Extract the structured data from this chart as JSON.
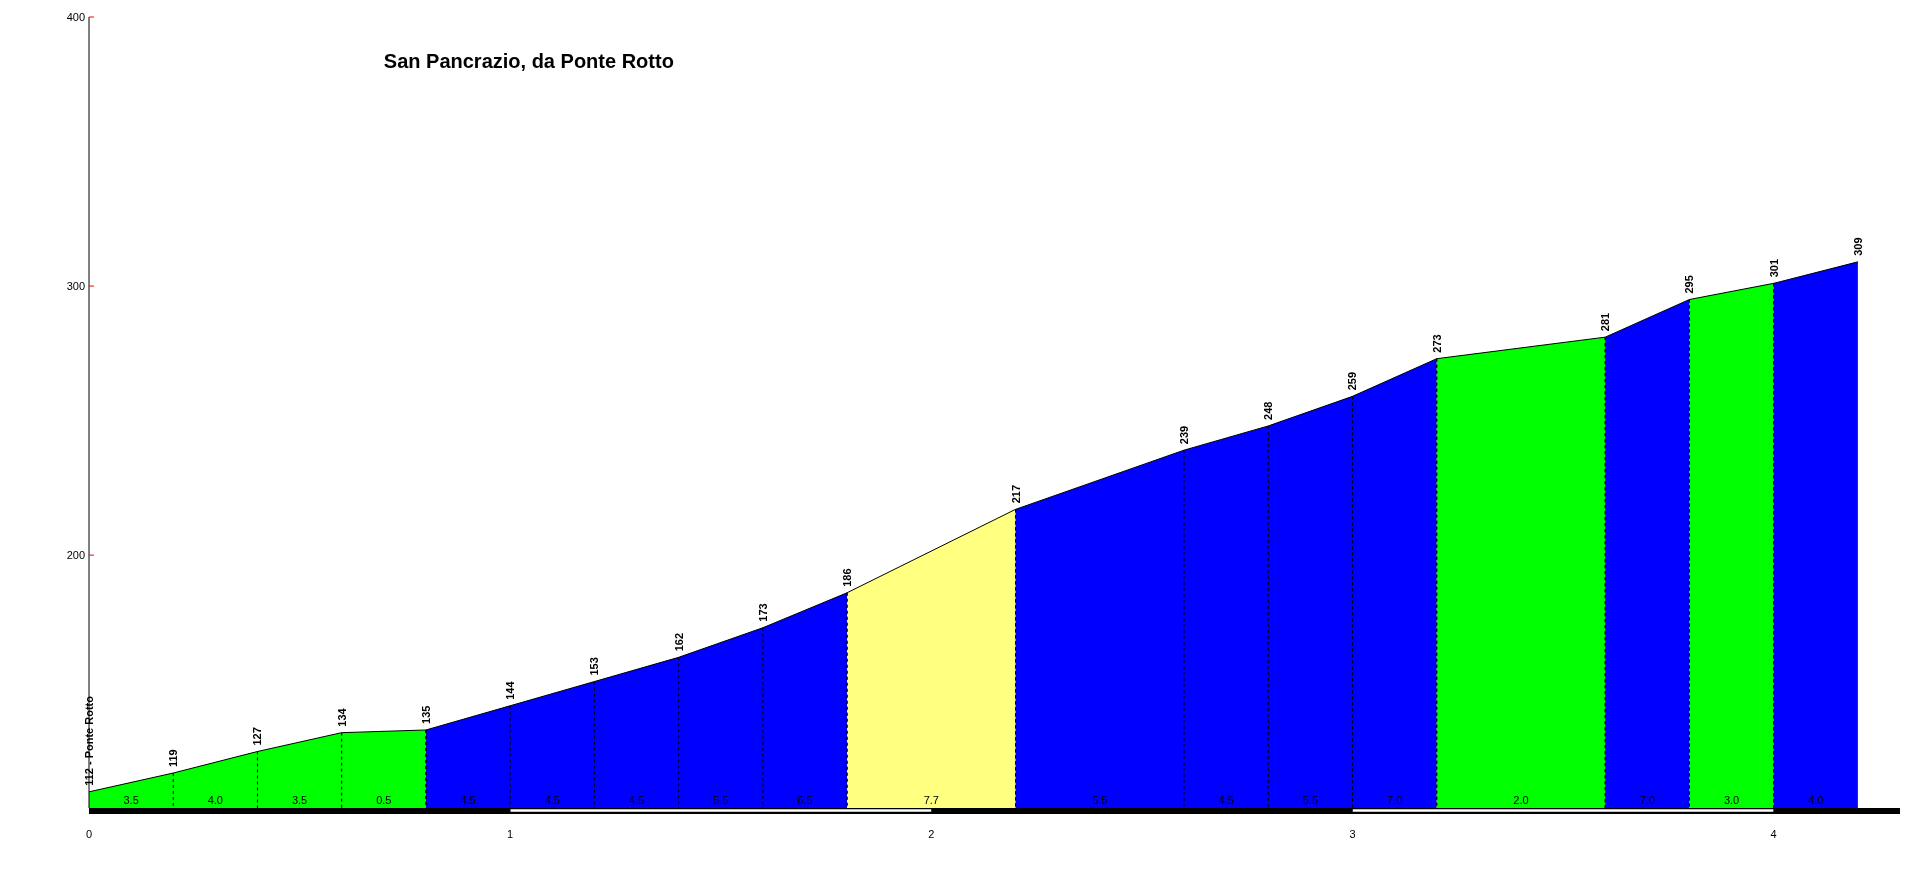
{
  "chart_data": {
    "type": "area",
    "title": "San Pancrazio, da Ponte Rotto",
    "series": [
      {
        "color": "#00ff00",
        "x": [
          0,
          0.2,
          0.4,
          0.6,
          0.8
        ],
        "values": [
          112,
          119,
          127,
          134,
          135
        ],
        "value_labels": [
          "112 - Ponte Rotto",
          "119",
          "127",
          "134",
          "135"
        ]
      },
      {
        "color": "#0000ff",
        "x": [
          0.8,
          1.0,
          1.2,
          1.4,
          1.6,
          1.8
        ],
        "values": [
          135,
          144,
          153,
          162,
          173,
          186
        ],
        "value_labels": [
          null,
          "144",
          "153",
          "162",
          "173",
          "186"
        ]
      },
      {
        "color": "#ffff80",
        "x": [
          1.8,
          2.2
        ],
        "values": [
          186,
          217
        ],
        "value_labels": [
          null,
          "217"
        ]
      },
      {
        "color": "#0000ff",
        "x": [
          2.2,
          2.6,
          2.8,
          3.0,
          3.2
        ],
        "values": [
          217,
          239,
          248,
          259,
          273
        ],
        "value_labels": [
          null,
          "239",
          "248",
          "259",
          "273"
        ]
      },
      {
        "color": "#00ff00",
        "x": [
          3.2,
          3.6
        ],
        "values": [
          273,
          281
        ],
        "value_labels": [
          null,
          "281"
        ]
      },
      {
        "color": "#0000ff",
        "x": [
          3.6,
          3.8
        ],
        "values": [
          281,
          295
        ],
        "value_labels": [
          null,
          "295"
        ]
      },
      {
        "color": "#00ff00",
        "x": [
          3.8,
          4.0
        ],
        "values": [
          295,
          301
        ],
        "value_labels": [
          null,
          "301"
        ]
      },
      {
        "color": "#0000ff",
        "x": [
          4.0,
          4.2
        ],
        "values": [
          301,
          309
        ],
        "value_labels": [
          null,
          "309"
        ]
      }
    ],
    "annotations": [
      "3.5",
      "4.0",
      "3.5",
      "0.5",
      "4.5",
      "4.5",
      "4.5",
      "5.5",
      "6.5",
      "7.7",
      "5.5",
      "4.5",
      "5.5",
      "7.0",
      "2.0",
      "7.0",
      "3.0",
      "4.0"
    ],
    "xlim": [
      0,
      4.3
    ],
    "xticks": [
      0,
      1,
      2,
      3,
      4
    ],
    "ylim": [
      106,
      400
    ],
    "yticks": [
      200,
      300,
      400
    ]
  }
}
